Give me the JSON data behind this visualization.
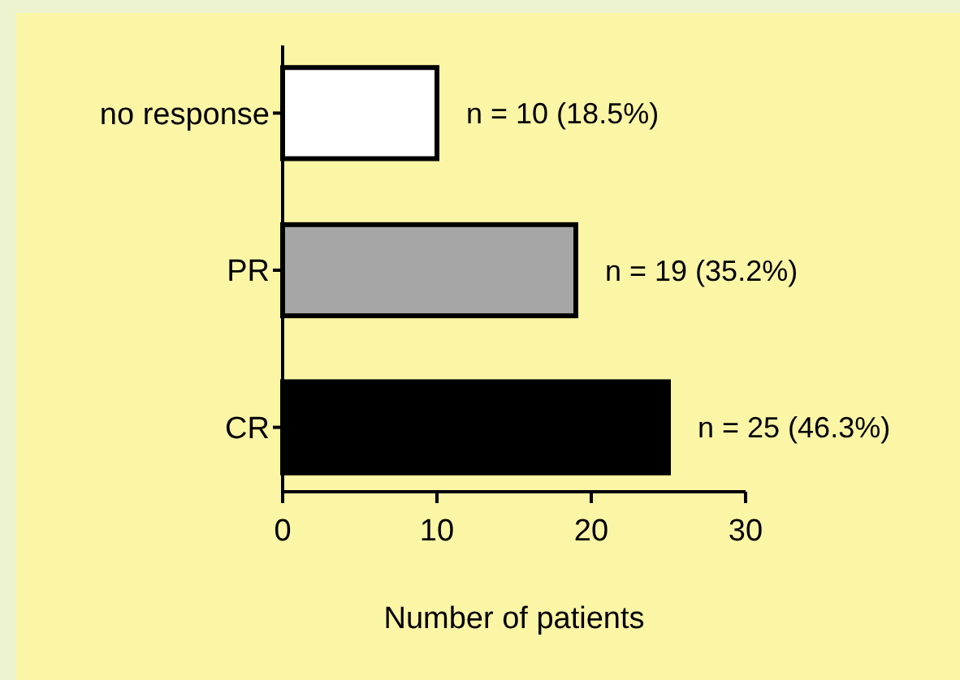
{
  "chart_data": {
    "type": "bar",
    "orientation": "horizontal",
    "xlabel": "Number of patients",
    "categories": [
      "no response",
      "PR",
      "CR"
    ],
    "values": [
      10,
      19,
      25
    ],
    "colors": [
      "#ffffff",
      "#a6a6a6",
      "#000000"
    ],
    "value_labels": [
      "n = 10 (18.5%)",
      "n = 19 (35.2%)",
      "n = 25 (46.3%)"
    ],
    "xlim": [
      0,
      30
    ],
    "xticks": [
      0,
      10,
      20,
      30
    ],
    "grid": false
  }
}
